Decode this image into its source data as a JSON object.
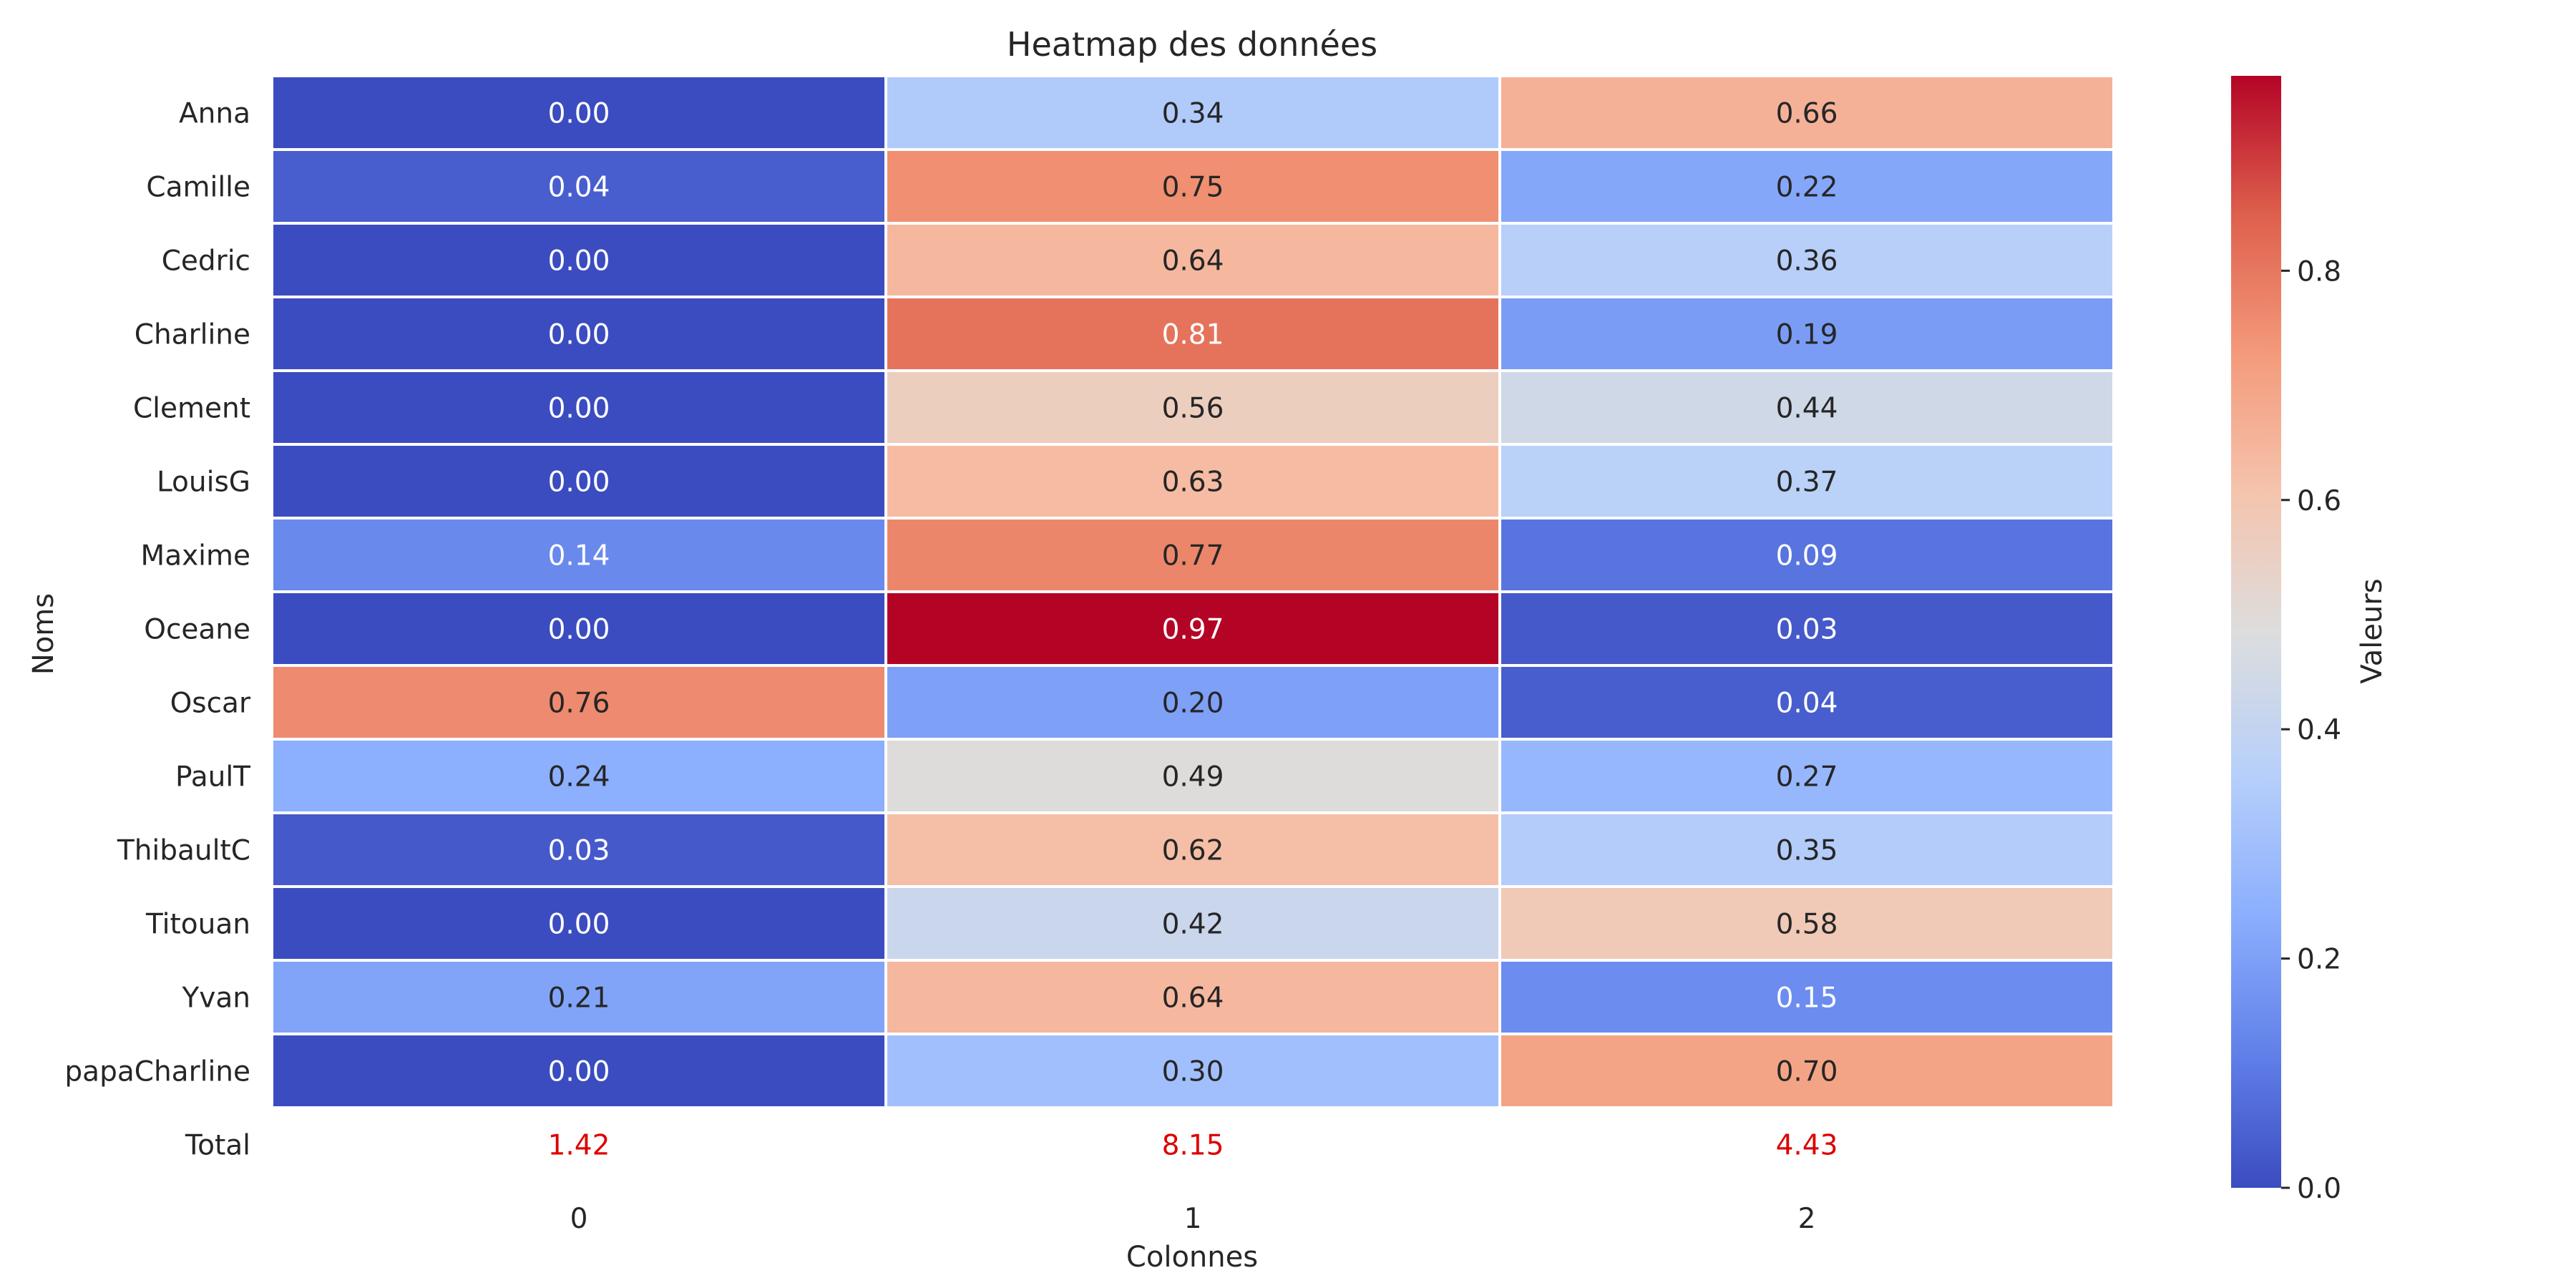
{
  "chart_data": {
    "type": "heatmap",
    "title": "Heatmap des données",
    "xlabel": "Colonnes",
    "ylabel": "Noms",
    "x_categories": [
      "0",
      "1",
      "2"
    ],
    "y_categories": [
      "Anna",
      "Camille",
      "Cedric",
      "Charline",
      "Clement",
      "LouisG",
      "Maxime",
      "Oceane",
      "Oscar",
      "PaulT",
      "ThibaultC",
      "Titouan",
      "Yvan",
      "papaCharline"
    ],
    "values": [
      [
        0.0,
        0.34,
        0.66
      ],
      [
        0.04,
        0.75,
        0.22
      ],
      [
        0.0,
        0.64,
        0.36
      ],
      [
        0.0,
        0.81,
        0.19
      ],
      [
        0.0,
        0.56,
        0.44
      ],
      [
        0.0,
        0.63,
        0.37
      ],
      [
        0.14,
        0.77,
        0.09
      ],
      [
        0.0,
        0.97,
        0.03
      ],
      [
        0.76,
        0.2,
        0.04
      ],
      [
        0.24,
        0.49,
        0.27
      ],
      [
        0.03,
        0.62,
        0.35
      ],
      [
        0.0,
        0.42,
        0.58
      ],
      [
        0.21,
        0.64,
        0.15
      ],
      [
        0.0,
        0.3,
        0.7
      ]
    ],
    "value_format": "0.00",
    "total_row": {
      "label": "Total",
      "values": [
        1.42,
        8.15,
        4.43
      ],
      "color": "#dd0000"
    },
    "colormap": "coolwarm",
    "colorbar": {
      "label": "Valeurs",
      "range": [
        0.0,
        0.97
      ],
      "ticks": [
        0.0,
        0.2,
        0.4,
        0.6,
        0.8
      ],
      "tick_labels": [
        "0.0",
        "0.2",
        "0.4",
        "0.6",
        "0.8"
      ],
      "placement": "right"
    },
    "grid": false
  }
}
